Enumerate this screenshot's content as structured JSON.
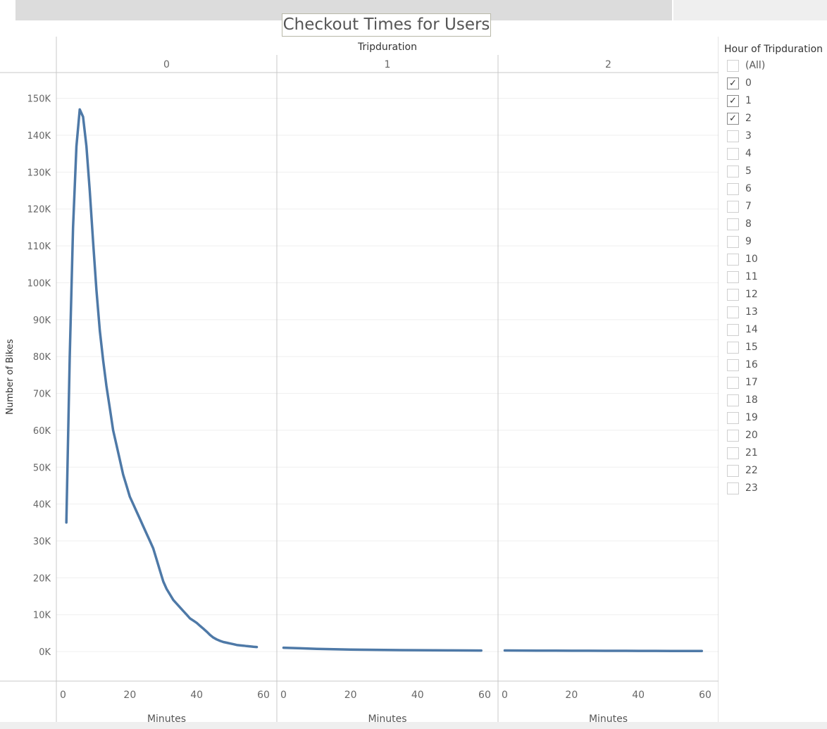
{
  "chart_data": {
    "type": "line",
    "title": "Checkout Times for Users",
    "column_header": "Tripduration",
    "ylabel": "Number of Bikes",
    "ylim": [
      -8000,
      157000
    ],
    "yticks": [
      0,
      10000,
      20000,
      30000,
      40000,
      50000,
      60000,
      70000,
      80000,
      90000,
      100000,
      110000,
      120000,
      130000,
      140000,
      150000
    ],
    "ytick_labels": [
      "0K",
      "10K",
      "20K",
      "30K",
      "40K",
      "50K",
      "60K",
      "70K",
      "80K",
      "90K",
      "100K",
      "110K",
      "120K",
      "130K",
      "140K",
      "150K"
    ],
    "line_color": "#4e79a7",
    "grid": true,
    "legend_position": "right",
    "panels": [
      {
        "label": "0",
        "xlabel": "Minutes",
        "xlim": [
          -2,
          64
        ],
        "xticks": [
          0,
          20,
          40,
          60
        ],
        "x": [
          1,
          2,
          3,
          4,
          5,
          6,
          7,
          8,
          9,
          10,
          11,
          12,
          13,
          14,
          15,
          16,
          17,
          18,
          19,
          20,
          21,
          22,
          23,
          24,
          25,
          26,
          27,
          28,
          29,
          30,
          31,
          32,
          33,
          34,
          35,
          36,
          37,
          38,
          39,
          40,
          41,
          42,
          43,
          44,
          45,
          46,
          47,
          48,
          49,
          50,
          51,
          52,
          53,
          54,
          55,
          56,
          57,
          58
        ],
        "y": [
          35000,
          80000,
          115000,
          137000,
          147000,
          145000,
          137000,
          125000,
          111000,
          98000,
          87000,
          79000,
          72000,
          66000,
          60000,
          56000,
          52000,
          48000,
          45000,
          42000,
          40000,
          38000,
          36000,
          34000,
          32000,
          30000,
          28000,
          25000,
          22000,
          19000,
          17000,
          15500,
          14000,
          13000,
          12000,
          11000,
          10000,
          9000,
          8400,
          7800,
          7000,
          6200,
          5400,
          4500,
          3800,
          3300,
          2900,
          2600,
          2400,
          2200,
          2000,
          1800,
          1700,
          1600,
          1500,
          1400,
          1300,
          1250
        ]
      },
      {
        "label": "1",
        "xlabel": "Minutes",
        "xlim": [
          -2,
          64
        ],
        "xticks": [
          0,
          20,
          40,
          60
        ],
        "x": [
          0,
          5,
          10,
          15,
          20,
          25,
          30,
          35,
          40,
          45,
          50,
          55,
          59
        ],
        "y": [
          1050,
          900,
          750,
          650,
          550,
          500,
          450,
          400,
          380,
          350,
          320,
          300,
          280
        ]
      },
      {
        "label": "2",
        "xlabel": "Minutes",
        "xlim": [
          -2,
          64
        ],
        "xticks": [
          0,
          20,
          40,
          60
        ],
        "x": [
          0,
          5,
          10,
          15,
          20,
          25,
          30,
          35,
          40,
          45,
          50,
          55,
          59
        ],
        "y": [
          300,
          280,
          260,
          250,
          240,
          230,
          220,
          210,
          200,
          190,
          180,
          170,
          160
        ]
      }
    ]
  },
  "legend": {
    "title": "Hour of Tripduration",
    "check_glyph": "✓",
    "items": [
      {
        "label": "(All)",
        "checked": false
      },
      {
        "label": "0",
        "checked": true
      },
      {
        "label": "1",
        "checked": true
      },
      {
        "label": "2",
        "checked": true
      },
      {
        "label": "3",
        "checked": false
      },
      {
        "label": "4",
        "checked": false
      },
      {
        "label": "5",
        "checked": false
      },
      {
        "label": "6",
        "checked": false
      },
      {
        "label": "7",
        "checked": false
      },
      {
        "label": "8",
        "checked": false
      },
      {
        "label": "9",
        "checked": false
      },
      {
        "label": "10",
        "checked": false
      },
      {
        "label": "11",
        "checked": false
      },
      {
        "label": "12",
        "checked": false
      },
      {
        "label": "13",
        "checked": false
      },
      {
        "label": "14",
        "checked": false
      },
      {
        "label": "15",
        "checked": false
      },
      {
        "label": "16",
        "checked": false
      },
      {
        "label": "17",
        "checked": false
      },
      {
        "label": "18",
        "checked": false
      },
      {
        "label": "19",
        "checked": false
      },
      {
        "label": "20",
        "checked": false
      },
      {
        "label": "21",
        "checked": false
      },
      {
        "label": "22",
        "checked": false
      },
      {
        "label": "23",
        "checked": false
      }
    ]
  }
}
